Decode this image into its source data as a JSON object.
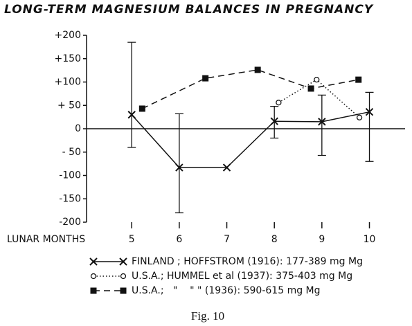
{
  "chart_data": {
    "type": "line",
    "title": "LONG-TERM MAGNESIUM BALANCES IN PREGNANCY",
    "x_label": "LUNAR MONTHS",
    "caption": "Fig. 10",
    "xlim": [
      4.05,
      10.75
    ],
    "xticks": [
      5,
      6,
      7,
      8,
      9,
      10
    ],
    "ylim": [
      -200,
      200
    ],
    "yticks": [
      {
        "value": 200,
        "label": "+200"
      },
      {
        "value": 150,
        "label": "+150"
      },
      {
        "value": 100,
        "label": "+100"
      },
      {
        "value": 50,
        "label": "+ 50"
      },
      0,
      {
        "value": -50,
        "label": "- 50"
      },
      -100,
      -150,
      -200
    ],
    "series": [
      {
        "name": "FINLAND ; HOFFSTROM (1916): 177-389 mg Mg",
        "color": "#111",
        "marker": "x",
        "dash": "solid",
        "x": [
          5,
          6,
          7,
          8,
          9,
          10
        ],
        "values": [
          30,
          -83,
          -83,
          16,
          15,
          36
        ],
        "error_low": [
          -40,
          -180,
          null,
          -20,
          -57,
          -70
        ],
        "error_high": [
          185,
          32,
          null,
          48,
          72,
          78
        ]
      },
      {
        "name": "U.S.A.; HUMMEL et al (1937): 375-403 mg Mg",
        "color": "#111",
        "marker": "circle",
        "dash": "dotted",
        "x": [
          8.09,
          8.89,
          9.79
        ],
        "values": [
          56,
          105,
          24
        ]
      },
      {
        "name": "U.S.A.;   \"    \" \" (1936): 590-615 mg Mg",
        "color": "#111",
        "marker": "square",
        "dash": "dashed",
        "x": [
          5.22,
          6.55,
          7.65,
          8.77,
          9.77
        ],
        "values": [
          43,
          108,
          126,
          86,
          105
        ]
      }
    ]
  }
}
